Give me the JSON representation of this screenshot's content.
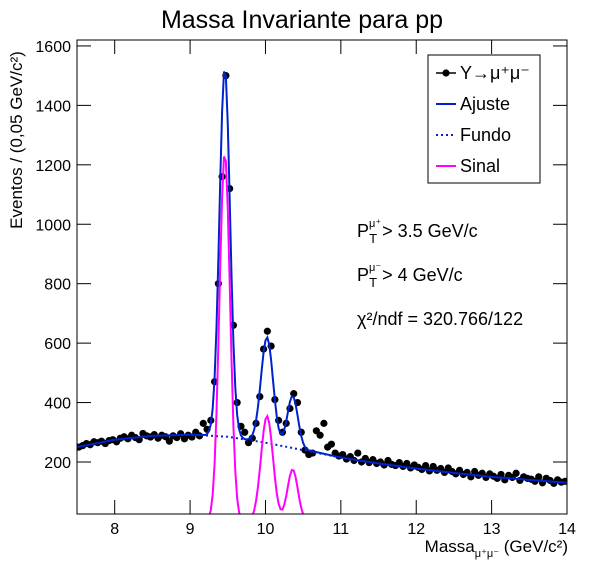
{
  "chart_data": {
    "type": "line",
    "title": "Massa Invariante para pp",
    "x_label": {
      "main": "Massa",
      "sub": "μ⁺μ⁻",
      "rest": " (GeV/c²)"
    },
    "y_label": "Eventos / (0,05 GeV/c²)",
    "xlim": [
      7.5,
      14
    ],
    "ylim": [
      25,
      1620
    ],
    "xticks": [
      8,
      9,
      10,
      11,
      12,
      13,
      14
    ],
    "yticks": [
      200,
      400,
      600,
      800,
      1000,
      1200,
      1400,
      1600
    ],
    "legend": "upper right",
    "annotations": [
      {
        "main": "P",
        "sub": "T",
        "sup": "μ⁺",
        "rest": " > 3.5 GeV/c"
      },
      {
        "main": "P",
        "sub": "T",
        "sup": "μ⁻",
        "rest": " > 4 GeV/c"
      },
      {
        "text": "χ²/ndf = 320.766/122"
      }
    ],
    "series": [
      {
        "name": "Υ→μ⁺μ⁻",
        "color": "#000000",
        "style": "markers",
        "x": [
          7.525,
          7.575,
          7.625,
          7.675,
          7.725,
          7.775,
          7.825,
          7.875,
          7.925,
          7.975,
          8.025,
          8.075,
          8.125,
          8.175,
          8.225,
          8.275,
          8.325,
          8.375,
          8.425,
          8.475,
          8.525,
          8.575,
          8.625,
          8.675,
          8.725,
          8.775,
          8.825,
          8.875,
          8.925,
          8.975,
          9.025,
          9.075,
          9.125,
          9.175,
          9.225,
          9.275,
          9.325,
          9.375,
          9.425,
          9.475,
          9.525,
          9.575,
          9.625,
          9.675,
          9.725,
          9.775,
          9.825,
          9.875,
          9.925,
          9.975,
          10.025,
          10.075,
          10.125,
          10.175,
          10.225,
          10.275,
          10.325,
          10.375,
          10.425,
          10.475,
          10.525,
          10.575,
          10.625,
          10.675,
          10.725,
          10.775,
          10.825,
          10.875,
          10.925,
          10.975,
          11.025,
          11.075,
          11.125,
          11.175,
          11.225,
          11.275,
          11.325,
          11.375,
          11.425,
          11.475,
          11.525,
          11.575,
          11.625,
          11.675,
          11.725,
          11.775,
          11.825,
          11.875,
          11.925,
          11.975,
          12.025,
          12.075,
          12.125,
          12.175,
          12.225,
          12.275,
          12.325,
          12.375,
          12.425,
          12.475,
          12.525,
          12.575,
          12.625,
          12.675,
          12.725,
          12.775,
          12.825,
          12.875,
          12.925,
          12.975,
          13.025,
          13.075,
          13.125,
          13.175,
          13.225,
          13.275,
          13.325,
          13.375,
          13.425,
          13.475,
          13.525,
          13.575,
          13.625,
          13.675,
          13.725,
          13.775,
          13.825,
          13.875,
          13.925,
          13.975
        ],
        "values": [
          250,
          255,
          262,
          258,
          268,
          265,
          270,
          262,
          272,
          275,
          268,
          280,
          285,
          278,
          290,
          282,
          275,
          296,
          288,
          284,
          292,
          280,
          290,
          285,
          270,
          288,
          282,
          295,
          278,
          290,
          284,
          300,
          288,
          330,
          310,
          340,
          470,
          800,
          1160,
          1500,
          1120,
          660,
          400,
          320,
          300,
          265,
          280,
          330,
          420,
          580,
          640,
          590,
          410,
          340,
          300,
          330,
          380,
          430,
          400,
          300,
          240,
          225,
          230,
          305,
          290,
          330,
          250,
          260,
          230,
          220,
          225,
          210,
          218,
          205,
          230,
          200,
          212,
          198,
          208,
          195,
          200,
          190,
          205,
          192,
          188,
          198,
          185,
          195,
          180,
          190,
          182,
          175,
          188,
          170,
          185,
          172,
          178,
          165,
          180,
          168,
          160,
          172,
          158,
          165,
          150,
          168,
          155,
          162,
          148,
          160,
          152,
          145,
          158,
          140,
          155,
          148,
          162,
          138,
          150,
          145,
          142,
          135,
          150,
          130,
          145,
          138,
          128,
          140,
          132,
          135
        ]
      },
      {
        "name": "Ajuste",
        "color": "#0022cc",
        "style": "solid",
        "x": [
          7.5,
          8,
          8.5,
          9,
          9.1,
          9.2,
          9.225,
          9.25,
          9.275,
          9.3,
          9.325,
          9.35,
          9.375,
          9.4,
          9.425,
          9.45,
          9.475,
          9.5,
          9.525,
          9.55,
          9.575,
          9.6,
          9.625,
          9.65,
          9.675,
          9.7,
          9.725,
          9.75,
          9.775,
          9.8,
          9.825,
          9.85,
          9.875,
          9.9,
          9.925,
          9.95,
          9.975,
          10.0,
          10.025,
          10.05,
          10.075,
          10.1,
          10.125,
          10.15,
          10.175,
          10.2,
          10.225,
          10.25,
          10.275,
          10.3,
          10.325,
          10.35,
          10.375,
          10.4,
          10.425,
          10.45,
          10.475,
          10.5,
          10.525,
          10.55,
          10.575,
          11,
          11.5,
          12,
          12.5,
          13,
          13.5,
          14
        ],
        "values": [
          250,
          275,
          288,
          292,
          291,
          291,
          294,
          304,
          327,
          380,
          482,
          649,
          881,
          1146,
          1381,
          1514,
          1498,
          1338,
          1090,
          825,
          603,
          449,
          357,
          311,
          290,
          281,
          277,
          276,
          277,
          281,
          290,
          308,
          339,
          384,
          443,
          509,
          569,
          609,
          619,
          595,
          543,
          475,
          409,
          353,
          313,
          296,
          294,
          310,
          336,
          371,
          403,
          421,
          418,
          394,
          358,
          319,
          287,
          264,
          250,
          242,
          239,
          215,
          195,
          178,
          163,
          150,
          140,
          130
        ]
      },
      {
        "name": "Fundo",
        "color": "#0022cc",
        "style": "dotted",
        "x": [
          7.5,
          8,
          8.5,
          9,
          9.5,
          10,
          10.5,
          11,
          11.5,
          12,
          12.5,
          13,
          13.5,
          14
        ],
        "values": [
          250,
          275,
          288,
          292,
          285,
          265,
          240,
          215,
          195,
          178,
          163,
          150,
          140,
          130
        ]
      },
      {
        "name": "Sinal",
        "color": "#ff00ff",
        "style": "solid",
        "x": [
          9.2,
          9.225,
          9.25,
          9.275,
          9.3,
          9.325,
          9.35,
          9.375,
          9.4,
          9.425,
          9.45,
          9.475,
          9.5,
          9.525,
          9.55,
          9.575,
          9.6,
          9.625,
          9.65,
          9.675,
          9.7,
          9.725,
          9.75,
          9.775,
          9.8,
          9.825,
          9.85,
          9.875,
          9.9,
          9.925,
          9.95,
          9.975,
          10.0,
          10.025,
          10.05,
          10.075,
          10.1,
          10.125,
          10.15,
          10.175,
          10.2,
          10.225,
          10.25,
          10.275,
          10.3,
          10.325,
          10.35,
          10.375,
          10.4,
          10.425,
          10.45,
          10.475,
          10.5,
          10.525,
          10.55,
          10.575
        ],
        "values": [
          1,
          4,
          14,
          38,
          91,
          193,
          361,
          593,
          859,
          1094,
          1228,
          1212,
          1053,
          806,
          542,
          321,
          168,
          77,
          31,
          11,
          4,
          1,
          1,
          3,
          8,
          18,
          37,
          69,
          115,
          175,
          242,
          303,
          344,
          354,
          331,
          280,
          215,
          150,
          95,
          59,
          41,
          40,
          57,
          85,
          121,
          154,
          173,
          171,
          149,
          114,
          76,
          45,
          24,
          11,
          4,
          2
        ]
      }
    ]
  }
}
